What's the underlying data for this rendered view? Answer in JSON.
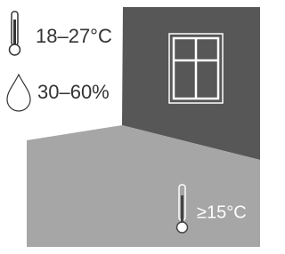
{
  "labels": {
    "temperature_room": "18–27°C",
    "humidity": "30–60%",
    "temperature_floor": "≥15°C"
  }
}
